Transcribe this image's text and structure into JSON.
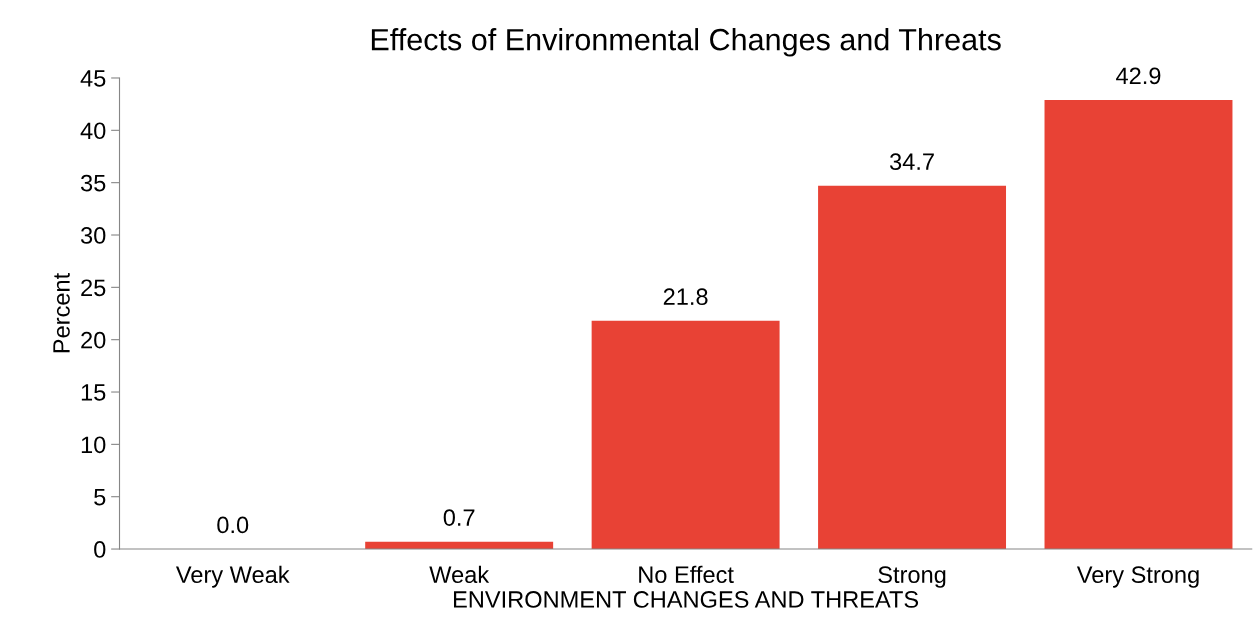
{
  "chart_data": {
    "type": "bar",
    "title": "Effects of Environmental Changes and Threats",
    "xlabel": "ENVIRONMENT CHANGES AND THREATS",
    "ylabel": "Percent",
    "categories": [
      "Very Weak",
      "Weak",
      "No Effect",
      "Strong",
      "Very Strong"
    ],
    "values": [
      0.0,
      0.7,
      21.8,
      34.7,
      42.9
    ],
    "value_labels": [
      "0.0",
      "0.7",
      "21.8",
      "34.7",
      "42.9"
    ],
    "color": "#e84235",
    "ylim": [
      0,
      45
    ],
    "yticks": [
      0,
      5,
      10,
      15,
      20,
      25,
      30,
      35,
      40,
      45
    ],
    "grid": false
  }
}
